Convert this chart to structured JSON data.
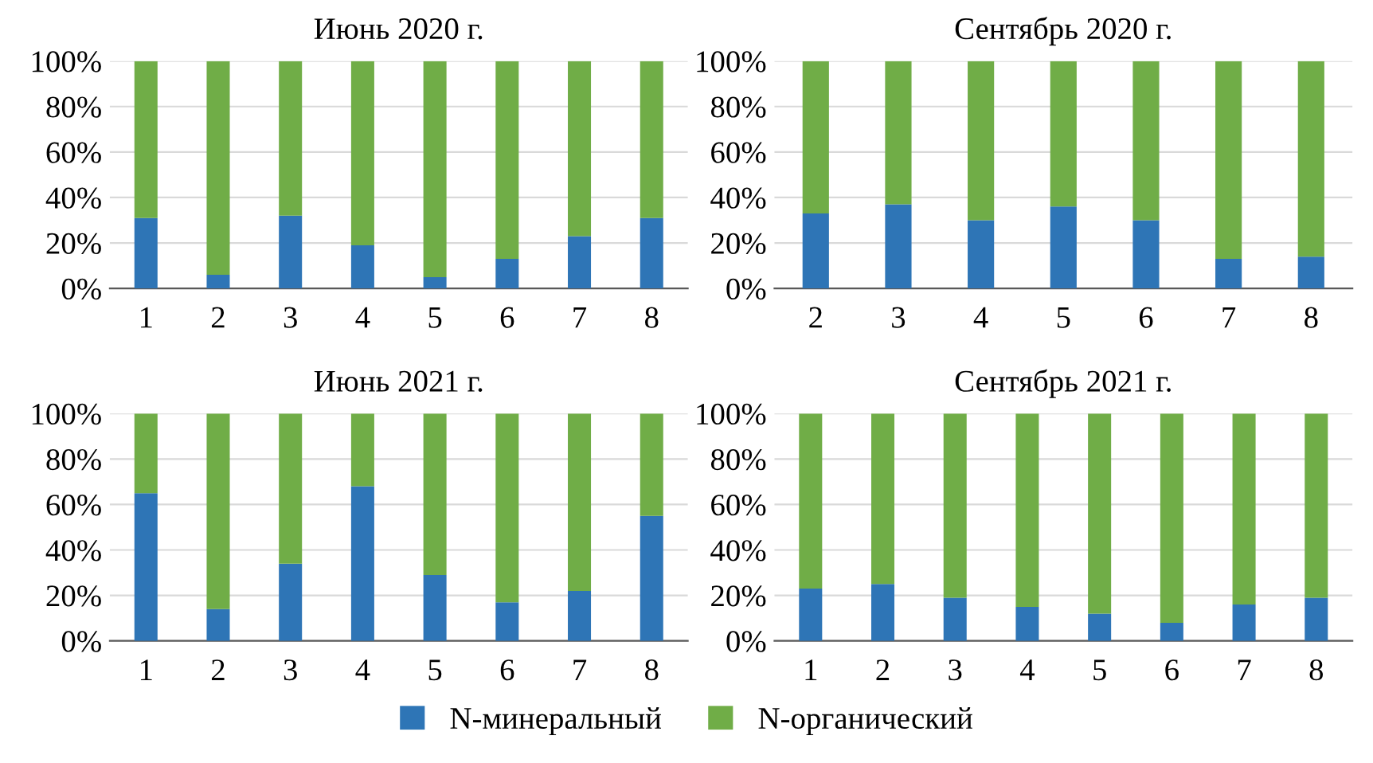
{
  "chart_data": [
    {
      "type": "bar",
      "title": "Июнь 2020 г.",
      "categories": [
        "1",
        "2",
        "3",
        "4",
        "5",
        "6",
        "7",
        "8"
      ],
      "stacked": true,
      "ylim": [
        0,
        100
      ],
      "yticks": [
        {
          "value": 0,
          "label": "0%"
        },
        {
          "value": 20,
          "label": "20%"
        },
        {
          "value": 40,
          "label": "40%"
        },
        {
          "value": 60,
          "label": "60%"
        },
        {
          "value": 80,
          "label": "80%"
        },
        {
          "value": 100,
          "label": "100%"
        }
      ],
      "grid": "y",
      "legend": "bottom",
      "series": [
        {
          "name": "N-минеральный",
          "color": "#2e75b6",
          "values": [
            31,
            6,
            32,
            19,
            5,
            13,
            23,
            31
          ]
        },
        {
          "name": "N-органический",
          "color": "#70ad47",
          "values": [
            69,
            94,
            68,
            81,
            95,
            87,
            77,
            69
          ]
        }
      ]
    },
    {
      "type": "bar",
      "title": "Сентябрь 2020 г.",
      "categories": [
        "2",
        "3",
        "4",
        "5",
        "6",
        "7",
        "8"
      ],
      "stacked": true,
      "ylim": [
        0,
        100
      ],
      "yticks": [
        {
          "value": 0,
          "label": "0%"
        },
        {
          "value": 20,
          "label": "20%"
        },
        {
          "value": 40,
          "label": "40%"
        },
        {
          "value": 60,
          "label": "60%"
        },
        {
          "value": 80,
          "label": "80%"
        },
        {
          "value": 100,
          "label": "100%"
        }
      ],
      "grid": "y",
      "series": [
        {
          "color": "#2e75b6",
          "values": [
            33,
            37,
            30,
            36,
            30,
            13,
            14
          ]
        },
        {
          "color": "#70ad47",
          "values": [
            67,
            63,
            70,
            64,
            70,
            87,
            86
          ]
        }
      ]
    },
    {
      "type": "bar",
      "title": "Июнь 2021 г.",
      "categories": [
        "1",
        "2",
        "3",
        "4",
        "5",
        "6",
        "7",
        "8"
      ],
      "stacked": true,
      "ylim": [
        0,
        100
      ],
      "yticks": [
        {
          "value": 0,
          "label": "0%"
        },
        {
          "value": 20,
          "label": "20%"
        },
        {
          "value": 40,
          "label": "40%"
        },
        {
          "value": 60,
          "label": "60%"
        },
        {
          "value": 80,
          "label": "80%"
        },
        {
          "value": 100,
          "label": "100%"
        }
      ],
      "grid": "y",
      "series": [
        {
          "color": "#2e75b6",
          "values": [
            65,
            14,
            34,
            68,
            29,
            17,
            22,
            55
          ]
        },
        {
          "color": "#70ad47",
          "values": [
            35,
            86,
            66,
            32,
            71,
            83,
            78,
            45
          ]
        }
      ]
    },
    {
      "type": "bar",
      "title": "Сентябрь 2021 г.",
      "categories": [
        "1",
        "2",
        "3",
        "4",
        "5",
        "6",
        "7",
        "8"
      ],
      "stacked": true,
      "ylim": [
        0,
        100
      ],
      "yticks": [
        {
          "value": 0,
          "label": "0%"
        },
        {
          "value": 20,
          "label": "20%"
        },
        {
          "value": 40,
          "label": "40%"
        },
        {
          "value": 60,
          "label": "60%"
        },
        {
          "value": 80,
          "label": "80%"
        },
        {
          "value": 100,
          "label": "100%"
        }
      ],
      "grid": "y",
      "series": [
        {
          "color": "#2e75b6",
          "values": [
            23,
            25,
            19,
            15,
            12,
            8,
            16,
            19
          ]
        },
        {
          "color": "#70ad47",
          "values": [
            77,
            75,
            81,
            85,
            88,
            92,
            84,
            81
          ]
        }
      ]
    }
  ]
}
